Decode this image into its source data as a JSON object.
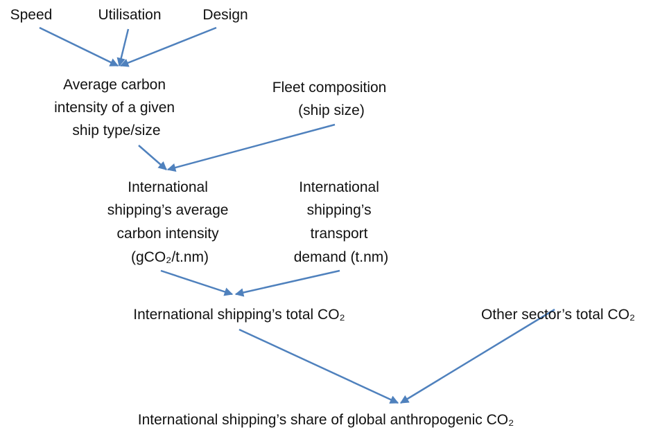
{
  "nodes": [
    {
      "lines": [
        "Speed"
      ]
    },
    {
      "lines": [
        "Utilisation"
      ]
    },
    {
      "lines": [
        "Design"
      ]
    },
    {
      "lines": [
        "Average carbon",
        "intensity of a given",
        "ship type/size"
      ]
    },
    {
      "lines": [
        "Fleet composition",
        "(ship size)"
      ]
    },
    {
      "lines": [
        "International",
        "shipping’s average",
        "carbon intensity",
        "(gCO₂/t.nm)"
      ]
    },
    {
      "lines": [
        "International",
        "shipping’s",
        "transport",
        "demand (t.nm)"
      ]
    },
    {
      "lines": [
        "International shipping’s total CO₂"
      ]
    },
    {
      "lines": [
        "Other sector’s total CO₂"
      ]
    },
    {
      "lines": [
        "International shipping’s share of global anthropogenic CO₂"
      ]
    }
  ]
}
